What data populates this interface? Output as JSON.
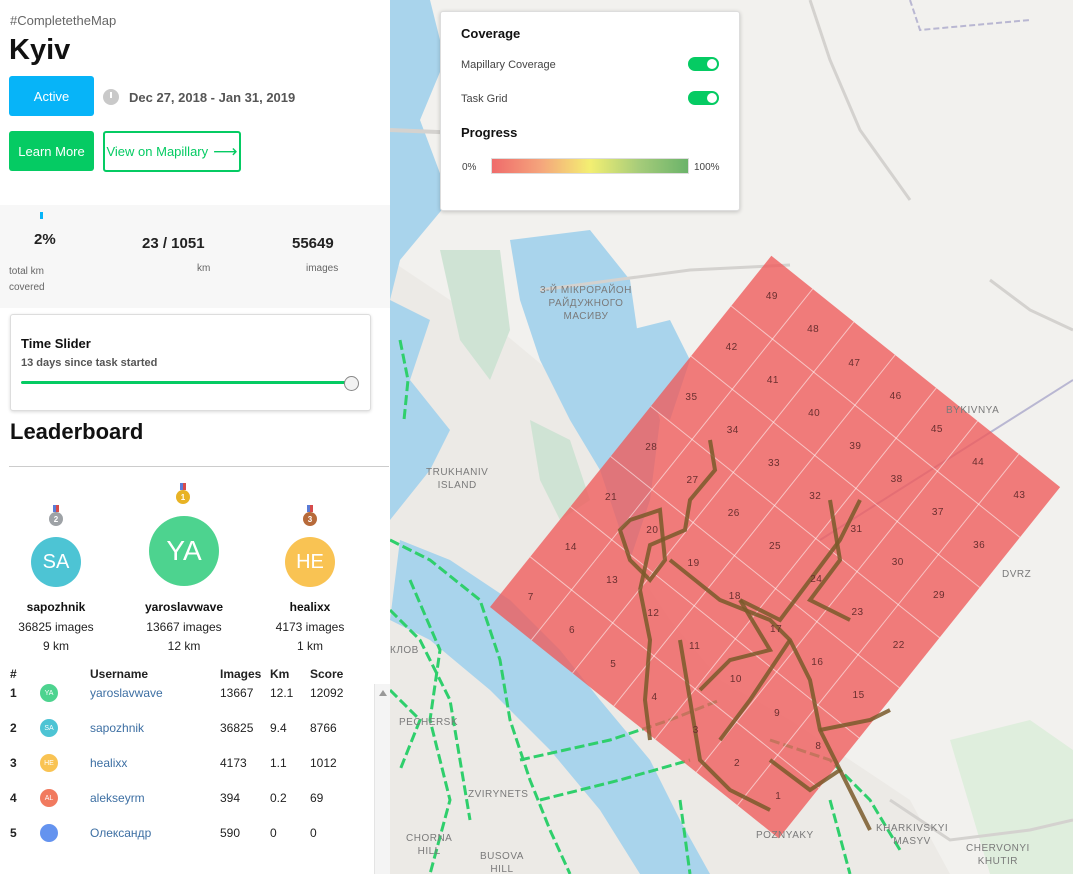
{
  "task": {
    "hashtag": "#CompletetheMap",
    "city": "Kyiv",
    "status_label": "Active",
    "dates": "Dec 27, 2018 - Jan 31, 2019",
    "learn_more_label": "Learn More",
    "view_label": "View on Mapillary"
  },
  "stats": {
    "percent": "2%",
    "percent_label_line1": "total km",
    "percent_label_line2": "covered",
    "km_value": "23 / 1051",
    "km_label": "km",
    "images_value": "55649",
    "images_label": "images"
  },
  "time_slider": {
    "title": "Time Slider",
    "subtitle": "13 days since task started",
    "position_fraction": 1.0
  },
  "leaderboard": {
    "title": "Leaderboard",
    "podium": [
      {
        "place": "2",
        "initials": "SA",
        "name": "sapozhnik",
        "images": "36825 images",
        "km": "9 km",
        "color": "#4dc4d4",
        "medal_color": "#9ea2a6"
      },
      {
        "place": "1",
        "initials": "YA",
        "name": "yaroslavwave",
        "images": "13667 images",
        "km": "12 km",
        "color": "#4dd38f",
        "medal_color": "#e8b325"
      },
      {
        "place": "3",
        "initials": "HE",
        "name": "healixx",
        "images": "4173 images",
        "km": "1 km",
        "color": "#f9c353",
        "medal_color": "#b76a3a"
      }
    ],
    "headers": {
      "rank": "#",
      "username": "Username",
      "images": "Images",
      "km": "Km",
      "score": "Score"
    },
    "rows": [
      {
        "rank": "1",
        "initials": "YA",
        "color": "#4dd38f",
        "username": "yaroslavwave",
        "images": "13667",
        "km": "12.1",
        "score": "12092"
      },
      {
        "rank": "2",
        "initials": "SA",
        "color": "#4dc4d4",
        "username": "sapozhnik",
        "images": "36825",
        "km": "9.4",
        "score": "8766"
      },
      {
        "rank": "3",
        "initials": "HE",
        "color": "#f9c353",
        "username": "healixx",
        "images": "4173",
        "km": "1.1",
        "score": "1012"
      },
      {
        "rank": "4",
        "initials": "AL",
        "color": "#f17a5f",
        "username": "alekseyrm",
        "images": "394",
        "km": "0.2",
        "score": "69"
      },
      {
        "rank": "5",
        "initials": "",
        "color": "#6493ef",
        "username": "Олександр",
        "images": "590",
        "km": "0",
        "score": "0"
      }
    ]
  },
  "coverage_panel": {
    "coverage_title": "Coverage",
    "mapillary_coverage_label": "Mapillary Coverage",
    "mapillary_coverage_on": true,
    "task_grid_label": "Task Grid",
    "task_grid_on": true,
    "progress_title": "Progress",
    "progress_min": "0%",
    "progress_max": "100%"
  },
  "map": {
    "labels": [
      {
        "text": "3-Й МІКРОРАЙОН",
        "line2": "РАЙДУЖНОГО",
        "line3": "МАСИВУ"
      },
      {
        "text": "TRUKHANIV",
        "line2": "ISLAND"
      },
      {
        "text": "BYKIVNYA"
      },
      {
        "text": "DVRZ"
      },
      {
        "text": "PECHERSK"
      },
      {
        "text": "ZVIRYNETS"
      },
      {
        "text": "CHORNA",
        "line2": "HILL"
      },
      {
        "text": "BUSOVA",
        "line2": "HILL"
      },
      {
        "text": "POZNYAKY"
      },
      {
        "text": "KHARKIVSKYI",
        "line2": "MASYV"
      },
      {
        "text": "CHERVONYI",
        "line2": "KHUTIR"
      },
      {
        "text": "КЛОВ"
      }
    ],
    "grid_cells": [
      "1",
      "2",
      "3",
      "4",
      "5",
      "6",
      "7",
      "8",
      "9",
      "10",
      "11",
      "12",
      "13",
      "14",
      "15",
      "16",
      "17",
      "18",
      "19",
      "20",
      "21",
      "22",
      "23",
      "24",
      "25",
      "26",
      "27",
      "28",
      "29",
      "30",
      "31",
      "32",
      "33",
      "34",
      "35",
      "36",
      "37",
      "38",
      "39",
      "40",
      "41",
      "42",
      "43",
      "44",
      "45",
      "46",
      "47",
      "48",
      "49"
    ],
    "grid_color": "#f05a5a",
    "accent_green": "#05cb63"
  }
}
